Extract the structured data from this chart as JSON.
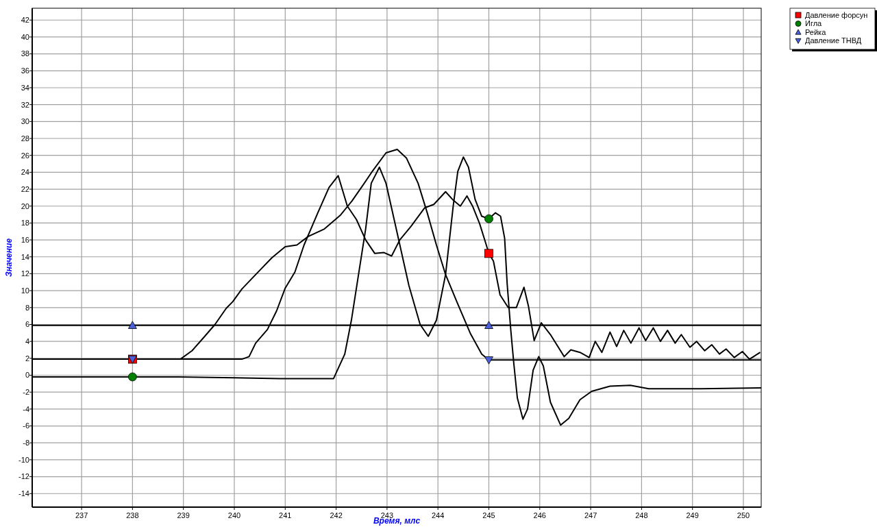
{
  "chart_data": {
    "type": "line",
    "xlabel": "Время, млс",
    "ylabel": "Значение",
    "xlim": [
      236.03,
      250.35
    ],
    "xticks": [
      237,
      238,
      239,
      240,
      241,
      242,
      243,
      244,
      245,
      246,
      247,
      248,
      249,
      250
    ],
    "ylim": [
      -15.6,
      43.4
    ],
    "yticks": [
      -14,
      -12,
      -10,
      -8,
      -6,
      -4,
      -2,
      0,
      2,
      4,
      6,
      8,
      10,
      12,
      14,
      16,
      18,
      20,
      22,
      24,
      26,
      28,
      30,
      32,
      34,
      36,
      38,
      40,
      42
    ],
    "grid": true,
    "legend": "top right",
    "line_style": "solid",
    "series": [
      {
        "color": "#000000",
        "marker": "none",
        "x": [
          236.03,
          240.15,
          240.29,
          240.42,
          240.65,
          240.83,
          241.0,
          241.19,
          241.37,
          241.64,
          241.86,
          242.04,
          242.22,
          242.4,
          242.58,
          242.76,
          242.94,
          243.09,
          243.25,
          243.47,
          243.74,
          243.92,
          244.15,
          244.3,
          244.44,
          244.57,
          244.68,
          244.82,
          244.95,
          245.0,
          245.09,
          245.22,
          245.38,
          245.54,
          245.69,
          245.78,
          245.89,
          246.03,
          246.21,
          246.48,
          246.61,
          246.79,
          246.97,
          247.09,
          247.22,
          247.38,
          247.51,
          247.65,
          247.79,
          247.95,
          248.08,
          248.23,
          248.37,
          248.51,
          248.66,
          248.78,
          248.95,
          249.08,
          249.24,
          249.38,
          249.53,
          249.66,
          249.82,
          249.98,
          250.12,
          250.33
        ],
        "values": [
          1.9,
          1.9,
          2.2,
          3.8,
          5.4,
          7.6,
          10.3,
          12.2,
          15.4,
          19.2,
          22.2,
          23.6,
          20.0,
          18.4,
          16.0,
          14.4,
          14.5,
          14.1,
          16.0,
          17.6,
          19.8,
          20.2,
          21.7,
          20.7,
          20.0,
          21.2,
          20.0,
          17.9,
          15.4,
          14.4,
          13.5,
          9.5,
          8.0,
          8.0,
          10.4,
          8.1,
          4.1,
          6.2,
          4.8,
          2.2,
          3.0,
          2.7,
          2.1,
          4.0,
          2.7,
          5.1,
          3.4,
          5.3,
          3.8,
          5.6,
          4.1,
          5.6,
          4.0,
          5.3,
          3.8,
          4.8,
          3.3,
          4.0,
          2.9,
          3.6,
          2.5,
          3.1,
          2.1,
          2.8,
          1.9,
          2.7
        ]
      },
      {
        "color": "#000000",
        "marker": "none",
        "x": [
          236.03,
          238.9,
          240.0,
          240.9,
          241.95,
          242.17,
          242.3,
          242.44,
          242.58,
          242.69,
          242.85,
          242.98,
          243.2,
          243.43,
          243.65,
          243.81,
          243.97,
          244.15,
          244.3,
          244.39,
          244.5,
          244.6,
          244.73,
          244.86,
          245.0,
          245.13,
          245.23,
          245.31,
          245.36,
          245.43,
          245.49,
          245.56,
          245.67,
          245.76,
          245.87,
          245.98,
          246.07,
          246.21,
          246.41,
          246.57,
          246.79,
          247.02,
          247.38,
          247.78,
          248.14,
          249.17,
          250.35
        ],
        "values": [
          -0.2,
          -0.2,
          -0.3,
          -0.4,
          -0.4,
          2.5,
          6.5,
          11.9,
          17.3,
          22.7,
          24.6,
          22.7,
          16.8,
          10.6,
          6.0,
          4.6,
          6.5,
          11.9,
          20.0,
          24.1,
          25.8,
          24.6,
          20.8,
          18.8,
          18.5,
          19.2,
          18.8,
          16.2,
          10.8,
          5.4,
          1.4,
          -2.7,
          -5.2,
          -4.0,
          0.6,
          2.2,
          1.1,
          -3.2,
          -5.9,
          -5.1,
          -2.9,
          -1.9,
          -1.3,
          -1.2,
          -1.6,
          -1.6,
          -1.5
        ]
      },
      {
        "color": "#000000",
        "marker": "none",
        "x": [
          236.03,
          250.35
        ],
        "values": [
          5.9,
          5.9
        ]
      },
      {
        "color": "#000000",
        "marker": "none",
        "x": [
          236.03,
          238.94,
          239.17,
          239.39,
          239.62,
          239.84,
          239.97,
          240.15,
          240.42,
          240.74,
          241.0,
          241.23,
          241.45,
          241.77,
          242.08,
          242.31,
          242.53,
          242.71,
          242.98,
          243.2,
          243.38,
          243.61,
          243.79,
          243.97,
          244.15,
          244.37,
          244.64,
          244.86,
          245.0,
          250.35
        ],
        "values": [
          1.9,
          1.9,
          2.9,
          4.4,
          6.0,
          7.9,
          8.7,
          10.2,
          11.9,
          13.9,
          15.2,
          15.4,
          16.4,
          17.3,
          18.9,
          20.6,
          22.5,
          24.1,
          26.3,
          26.7,
          25.7,
          22.7,
          19.2,
          15.4,
          11.9,
          8.7,
          4.9,
          2.5,
          1.8,
          1.8
        ]
      },
      {
        "type": "scatter",
        "name": "Давление форсун",
        "color": "#ff0000",
        "marker": "square",
        "x": [
          238,
          245
        ],
        "values": [
          1.9,
          14.4
        ]
      },
      {
        "type": "scatter",
        "name": "Игла",
        "color": "#008000",
        "marker": "circle",
        "x": [
          238,
          245
        ],
        "values": [
          -0.2,
          18.5
        ]
      },
      {
        "type": "scatter",
        "name": "Рейка",
        "color": "#4a5fd8",
        "marker": "triangle",
        "x": [
          238,
          245
        ],
        "values": [
          5.9,
          5.9
        ]
      },
      {
        "type": "scatter",
        "name": "Давление ТНВД",
        "color": "#4a5fd8",
        "marker": "triangle-down",
        "x": [
          238,
          245
        ],
        "values": [
          1.9,
          1.8
        ]
      }
    ]
  }
}
